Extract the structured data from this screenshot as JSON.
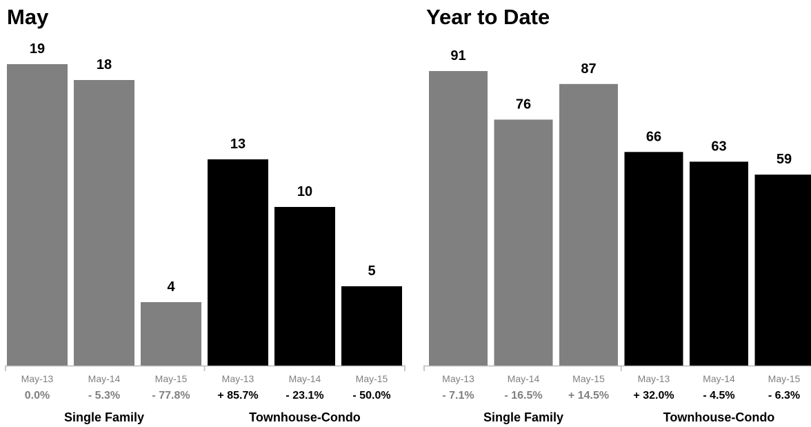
{
  "chart_data": [
    {
      "type": "bar",
      "title": "May",
      "groups": [
        {
          "name": "Single Family",
          "color": "#808080",
          "pct_color": "#808080",
          "categories": [
            "May-13",
            "May-14",
            "May-15"
          ],
          "values": [
            19,
            18,
            4
          ],
          "changes": [
            "0.0%",
            "- 5.3%",
            "- 77.8%"
          ]
        },
        {
          "name": "Townhouse-Condo",
          "color": "#000000",
          "pct_color": "#000000",
          "categories": [
            "May-13",
            "May-14",
            "May-15"
          ],
          "values": [
            13,
            10,
            5
          ],
          "changes": [
            "+ 85.7%",
            "- 23.1%",
            "- 50.0%"
          ]
        }
      ],
      "ylim": [
        0,
        19
      ]
    },
    {
      "type": "bar",
      "title": "Year to Date",
      "groups": [
        {
          "name": "Single Family",
          "color": "#808080",
          "pct_color": "#808080",
          "categories": [
            "May-13",
            "May-14",
            "May-15"
          ],
          "values": [
            91,
            76,
            87
          ],
          "changes": [
            "- 7.1%",
            "- 16.5%",
            "+ 14.5%"
          ]
        },
        {
          "name": "Townhouse-Condo",
          "color": "#000000",
          "pct_color": "#000000",
          "categories": [
            "May-13",
            "May-14",
            "May-15"
          ],
          "values": [
            66,
            63,
            59
          ],
          "changes": [
            "+ 32.0%",
            "- 4.5%",
            "- 6.3%"
          ]
        }
      ],
      "ylim": [
        0,
        91
      ]
    }
  ]
}
